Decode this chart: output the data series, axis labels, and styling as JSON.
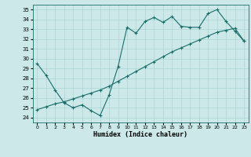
{
  "xlabel": "Humidex (Indice chaleur)",
  "bg_color": "#cce8e8",
  "line_color": "#1a6e6a",
  "grid_color": "#aad4d4",
  "xlim": [
    -0.5,
    23.5
  ],
  "ylim": [
    23.5,
    35.5
  ],
  "yticks": [
    24,
    25,
    26,
    27,
    28,
    29,
    30,
    31,
    32,
    33,
    34,
    35
  ],
  "xticks": [
    0,
    1,
    2,
    3,
    4,
    5,
    6,
    7,
    8,
    9,
    10,
    11,
    12,
    13,
    14,
    15,
    16,
    17,
    18,
    19,
    20,
    21,
    22,
    23
  ],
  "line1_x": [
    0,
    1,
    2,
    3,
    4,
    5,
    6,
    7,
    8,
    9,
    10,
    11,
    12,
    13,
    14,
    15,
    16,
    17,
    18,
    19,
    20,
    21,
    22,
    23
  ],
  "line1_y": [
    29.5,
    28.3,
    26.8,
    25.5,
    25.0,
    25.3,
    24.7,
    24.2,
    26.3,
    29.2,
    33.2,
    32.6,
    33.8,
    34.2,
    33.7,
    34.3,
    33.3,
    33.2,
    33.2,
    34.6,
    35.0,
    33.8,
    32.8,
    31.8
  ],
  "line2_x": [
    0,
    1,
    2,
    3,
    4,
    5,
    6,
    7,
    8,
    9,
    10,
    11,
    12,
    13,
    14,
    15,
    16,
    17,
    18,
    19,
    20,
    21,
    22,
    23
  ],
  "line2_y": [
    24.8,
    25.1,
    25.4,
    25.6,
    25.9,
    26.2,
    26.5,
    26.8,
    27.2,
    27.7,
    28.2,
    28.7,
    29.2,
    29.7,
    30.2,
    30.7,
    31.1,
    31.5,
    31.9,
    32.3,
    32.7,
    32.9,
    33.1,
    31.8
  ]
}
